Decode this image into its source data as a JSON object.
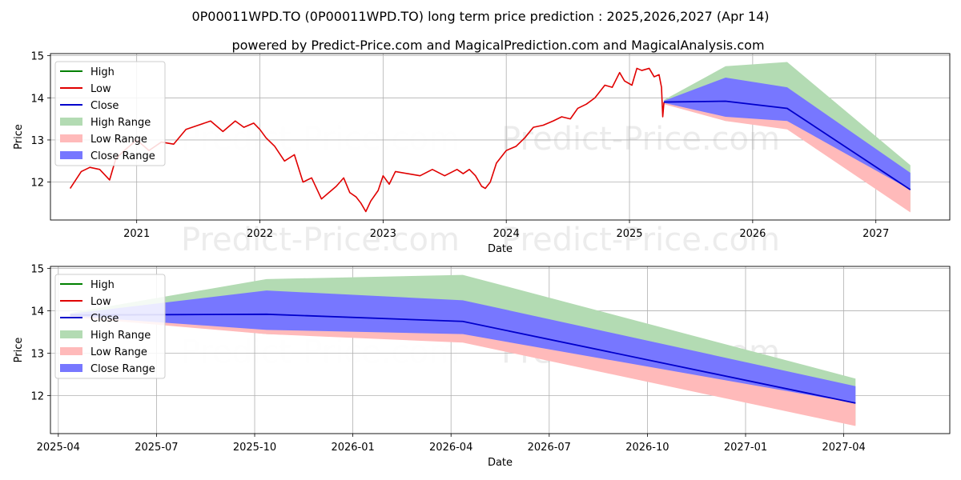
{
  "title": "0P00011WPD.TO (0P00011WPD.TO) long term price prediction : 2025,2026,2027 (Apr 14)",
  "subtitle": "powered by Predict-Price.com and MagicalPrediction.com and MagicalAnalysis.com",
  "watermark": "Predict-Price.com",
  "colors": {
    "high": "#008000",
    "low": "#e00000",
    "close": "#0000cc",
    "high_range": "#b3dbb3",
    "low_range": "#ffbaba",
    "close_range": "#7777ff",
    "grid": "#b0b0b0"
  },
  "legend": [
    "High",
    "Low",
    "Close",
    "High Range",
    "Low Range",
    "Close Range"
  ],
  "chart_data": [
    {
      "type": "line",
      "panel": "top",
      "xlabel": "Date",
      "ylabel": "Price",
      "xlim": [
        2020.3,
        2027.6
      ],
      "ylim": [
        11.1,
        15.05
      ],
      "xticks": [
        {
          "label": "2021",
          "value": 2021.0
        },
        {
          "label": "2022",
          "value": 2022.0
        },
        {
          "label": "2023",
          "value": 2023.0
        },
        {
          "label": "2024",
          "value": 2024.0
        },
        {
          "label": "2025",
          "value": 2025.0
        },
        {
          "label": "2026",
          "value": 2026.0
        },
        {
          "label": "2027",
          "value": 2027.0
        }
      ],
      "yticks": [
        12,
        13,
        14,
        15
      ],
      "grid": true,
      "legend_position": "upper-left",
      "history": {
        "name": "Low",
        "x": [
          2020.46,
          2020.55,
          2020.62,
          2020.7,
          2020.78,
          2020.83,
          2020.9,
          2021.0,
          2021.1,
          2021.2,
          2021.3,
          2021.4,
          2021.5,
          2021.6,
          2021.7,
          2021.8,
          2021.87,
          2021.95,
          2022.0,
          2022.05,
          2022.12,
          2022.2,
          2022.28,
          2022.35,
          2022.42,
          2022.5,
          2022.56,
          2022.62,
          2022.68,
          2022.73,
          2022.78,
          2022.82,
          2022.86,
          2022.9,
          2022.96,
          2023.0,
          2023.05,
          2023.1,
          2023.2,
          2023.3,
          2023.4,
          2023.5,
          2023.6,
          2023.65,
          2023.7,
          2023.75,
          2023.8,
          2023.83,
          2023.87,
          2023.92,
          2024.0,
          2024.08,
          2024.15,
          2024.22,
          2024.3,
          2024.38,
          2024.45,
          2024.52,
          2024.58,
          2024.65,
          2024.72,
          2024.8,
          2024.86,
          2024.92,
          2024.96,
          2025.02,
          2025.06,
          2025.1,
          2025.16,
          2025.2,
          2025.24,
          2025.26,
          2025.27,
          2025.28
        ],
        "y": [
          11.85,
          12.25,
          12.35,
          12.3,
          12.05,
          12.55,
          12.75,
          13.0,
          12.75,
          12.95,
          12.9,
          13.25,
          13.35,
          13.45,
          13.2,
          13.45,
          13.3,
          13.4,
          13.25,
          13.05,
          12.85,
          12.5,
          12.65,
          12.0,
          12.1,
          11.6,
          11.75,
          11.9,
          12.1,
          11.75,
          11.65,
          11.5,
          11.3,
          11.55,
          11.8,
          12.15,
          11.95,
          12.25,
          12.2,
          12.15,
          12.3,
          12.15,
          12.3,
          12.2,
          12.3,
          12.15,
          11.9,
          11.85,
          12.0,
          12.45,
          12.75,
          12.85,
          13.05,
          13.3,
          13.35,
          13.45,
          13.55,
          13.5,
          13.75,
          13.85,
          14.0,
          14.3,
          14.25,
          14.6,
          14.4,
          14.3,
          14.7,
          14.65,
          14.7,
          14.5,
          14.55,
          14.25,
          13.55,
          13.9
        ]
      },
      "forecast_x": [
        2025.28,
        2025.78,
        2026.28,
        2027.28
      ],
      "close": [
        13.9,
        13.92,
        13.75,
        11.82
      ],
      "high_range": [
        [
          13.9,
          13.95
        ],
        [
          13.45,
          14.75
        ],
        [
          13.3,
          14.85
        ],
        [
          11.3,
          12.4
        ]
      ],
      "low_range": [
        [
          13.85,
          13.9
        ],
        [
          13.45,
          13.75
        ],
        [
          13.25,
          13.55
        ],
        [
          11.28,
          11.85
        ]
      ],
      "close_range": [
        [
          13.88,
          13.93
        ],
        [
          13.55,
          14.48
        ],
        [
          13.45,
          14.25
        ],
        [
          11.82,
          12.22
        ]
      ]
    },
    {
      "type": "line",
      "panel": "bottom",
      "xlabel": "Date",
      "ylabel": "Price",
      "xlim": [
        2025.23,
        2027.52
      ],
      "ylim": [
        11.1,
        15.05
      ],
      "xticks": [
        {
          "label": "2025-04",
          "value": 2025.25
        },
        {
          "label": "2025-07",
          "value": 2025.5
        },
        {
          "label": "2025-10",
          "value": 2025.75
        },
        {
          "label": "2026-01",
          "value": 2026.0
        },
        {
          "label": "2026-04",
          "value": 2026.25
        },
        {
          "label": "2026-07",
          "value": 2026.5
        },
        {
          "label": "2026-10",
          "value": 2026.75
        },
        {
          "label": "2027-01",
          "value": 2027.0
        },
        {
          "label": "2027-04",
          "value": 2027.25
        }
      ],
      "yticks": [
        12,
        13,
        14,
        15
      ],
      "grid": true,
      "legend_position": "upper-left",
      "forecast_x": [
        2025.28,
        2025.78,
        2026.28,
        2027.28
      ],
      "close": [
        13.9,
        13.92,
        13.75,
        11.82
      ],
      "high_range": [
        [
          13.9,
          13.95
        ],
        [
          13.45,
          14.75
        ],
        [
          13.3,
          14.85
        ],
        [
          11.3,
          12.4
        ]
      ],
      "low_range": [
        [
          13.85,
          13.9
        ],
        [
          13.45,
          13.75
        ],
        [
          13.25,
          13.55
        ],
        [
          11.28,
          11.85
        ]
      ],
      "close_range": [
        [
          13.88,
          13.93
        ],
        [
          13.55,
          14.48
        ],
        [
          13.45,
          14.25
        ],
        [
          11.82,
          12.22
        ]
      ]
    }
  ]
}
